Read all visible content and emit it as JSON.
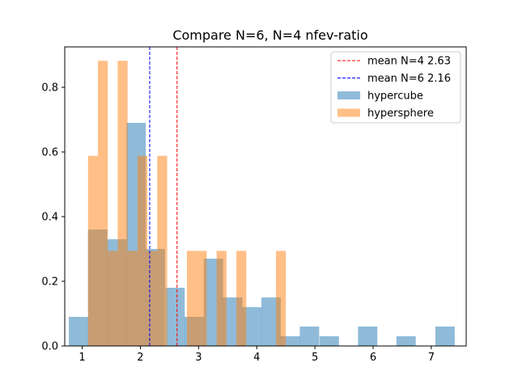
{
  "chart_data": {
    "type": "bar",
    "title": "Compare N=6, N=4 nfev-ratio",
    "xlabel": "",
    "ylabel": "",
    "xlim": [
      0.7,
      7.6
    ],
    "ylim": [
      0,
      0.925
    ],
    "xticks": [
      1,
      2,
      3,
      4,
      5,
      6,
      7
    ],
    "yticks": [
      0.0,
      0.2,
      0.4,
      0.6,
      0.8
    ],
    "ytick_labels": [
      "0.0",
      "0.2",
      "0.4",
      "0.6",
      "0.8"
    ],
    "grid": false,
    "legend_position": "top-right",
    "series": [
      {
        "name": "hypercube",
        "color": "#1f77b4",
        "opacity": 0.5,
        "bin_width": 0.333,
        "bins": [
          {
            "x0": 0.77,
            "h": 0.09
          },
          {
            "x0": 1.1,
            "h": 0.36
          },
          {
            "x0": 1.43,
            "h": 0.33
          },
          {
            "x0": 1.76,
            "h": 0.69
          },
          {
            "x0": 2.09,
            "h": 0.3
          },
          {
            "x0": 2.43,
            "h": 0.18
          },
          {
            "x0": 2.76,
            "h": 0.09
          },
          {
            "x0": 3.09,
            "h": 0.27
          },
          {
            "x0": 3.42,
            "h": 0.15
          },
          {
            "x0": 3.75,
            "h": 0.12
          },
          {
            "x0": 4.08,
            "h": 0.15
          },
          {
            "x0": 4.41,
            "h": 0.03
          },
          {
            "x0": 4.74,
            "h": 0.06
          },
          {
            "x0": 5.08,
            "h": 0.03
          },
          {
            "x0": 5.74,
            "h": 0.06
          },
          {
            "x0": 6.4,
            "h": 0.03
          },
          {
            "x0": 7.07,
            "h": 0.06
          }
        ]
      },
      {
        "name": "hypersphere",
        "color": "#ff7f0e",
        "opacity": 0.5,
        "bin_width": 0.17,
        "bins": [
          {
            "x0": 1.1,
            "h": 0.588
          },
          {
            "x0": 1.27,
            "h": 0.882
          },
          {
            "x0": 1.44,
            "h": 0.294
          },
          {
            "x0": 1.61,
            "h": 0.882
          },
          {
            "x0": 1.78,
            "h": 0.294
          },
          {
            "x0": 1.95,
            "h": 0.588
          },
          {
            "x0": 2.12,
            "h": 0.294
          },
          {
            "x0": 2.29,
            "h": 0.588
          },
          {
            "x0": 2.8,
            "h": 0.294
          },
          {
            "x0": 2.97,
            "h": 0.294
          },
          {
            "x0": 3.31,
            "h": 0.294
          },
          {
            "x0": 3.65,
            "h": 0.294
          },
          {
            "x0": 4.33,
            "h": 0.294
          }
        ]
      }
    ],
    "reference_lines": [
      {
        "label": "mean N=4 2.63",
        "x": 2.63,
        "color": "#ff0000"
      },
      {
        "label": "mean N=6 2.16",
        "x": 2.16,
        "color": "#0000ff"
      }
    ]
  }
}
